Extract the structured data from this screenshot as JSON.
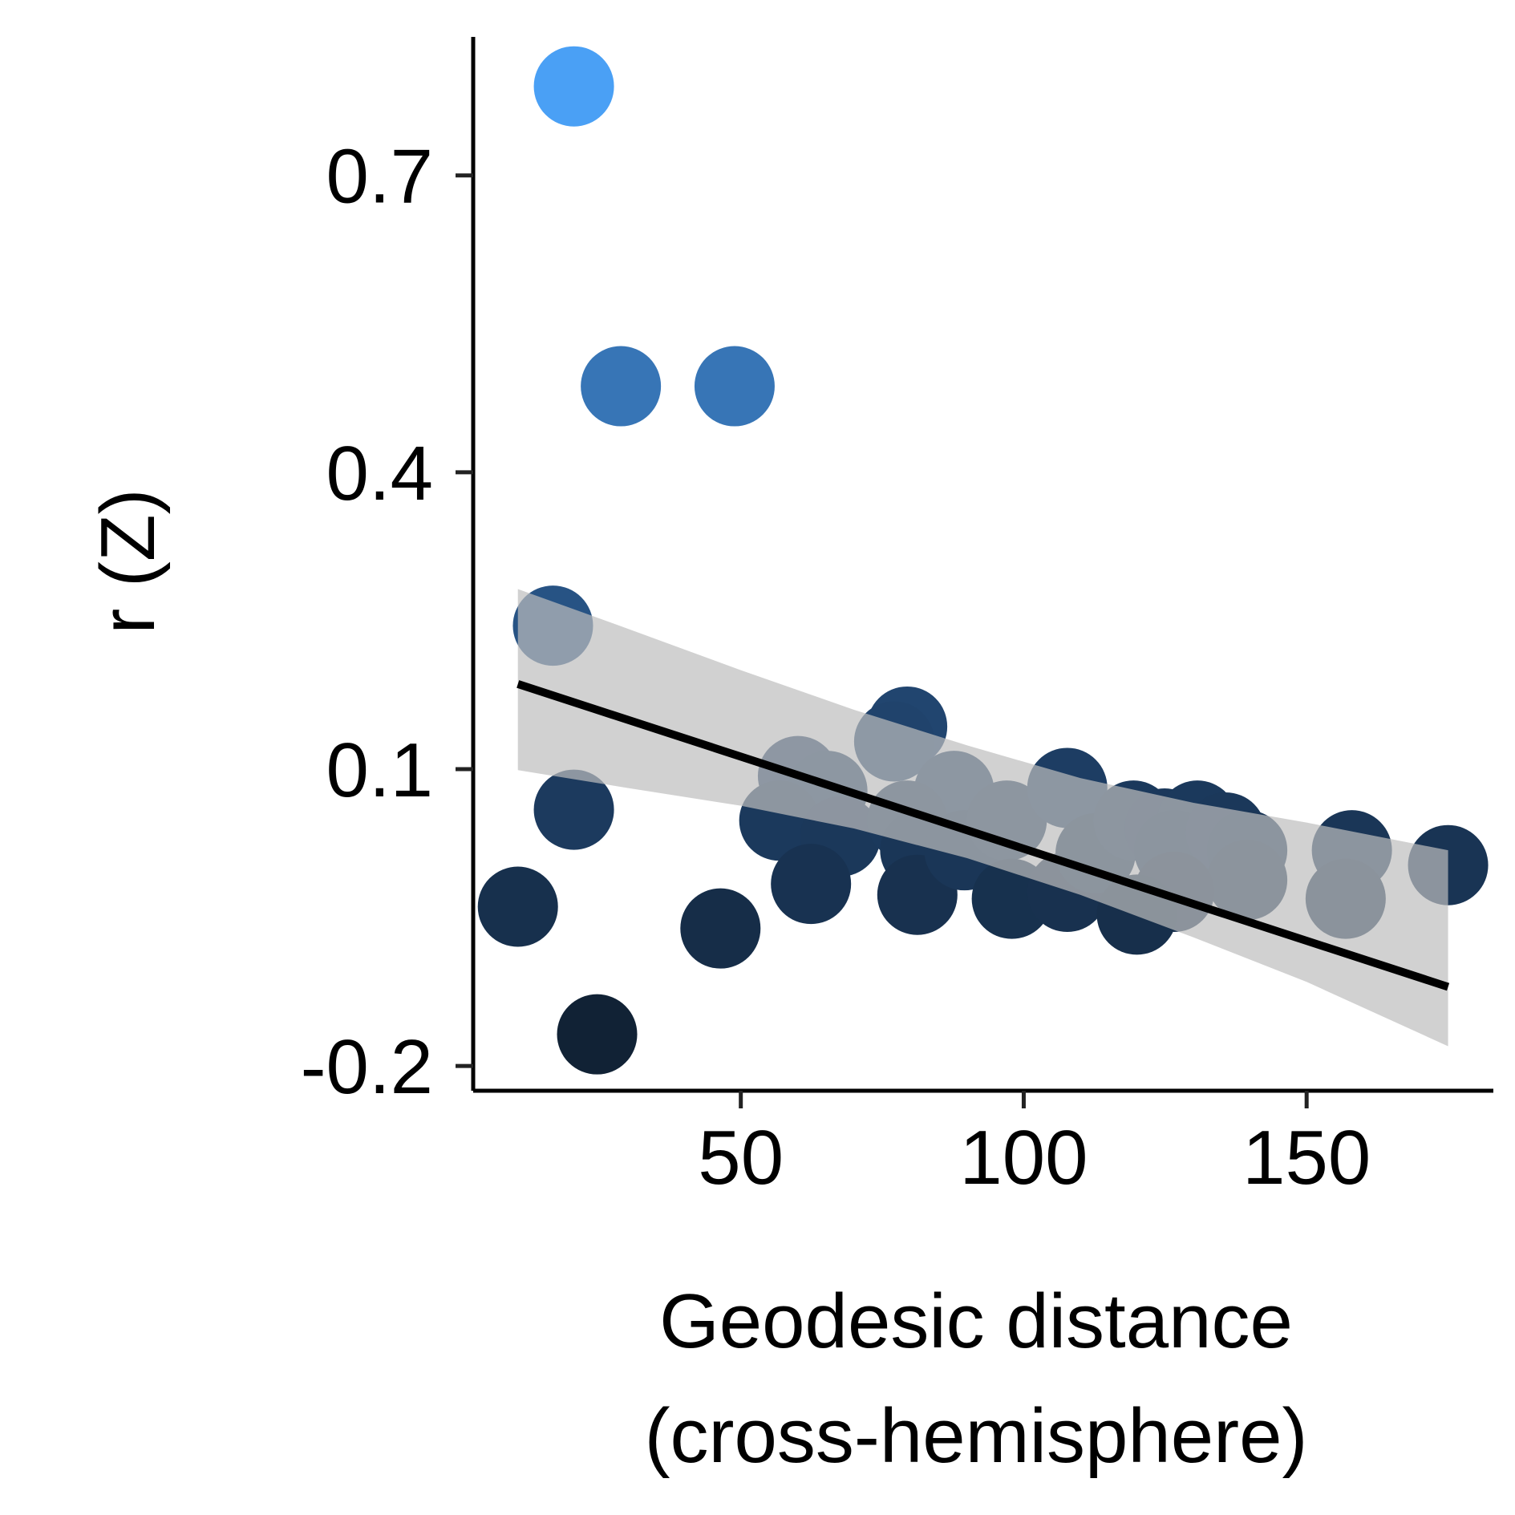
{
  "chart_data": {
    "type": "scatter",
    "title": "",
    "xlabel_lines": [
      "Geodesic distance",
      "(cross-hemisphere)"
    ],
    "ylabel": "r (Z)",
    "xlim": [
      2.7,
      183
    ],
    "ylim": [
      -0.225,
      0.84
    ],
    "x_ticks": [
      {
        "value": 50,
        "label": "50"
      },
      {
        "value": 100,
        "label": "100"
      },
      {
        "value": 150,
        "label": "150"
      }
    ],
    "y_ticks": [
      {
        "value": -0.2,
        "label": "-0.2"
      },
      {
        "value": 0.1,
        "label": "0.1"
      },
      {
        "value": 0.4,
        "label": "0.4"
      },
      {
        "value": 0.7,
        "label": "0.7"
      }
    ],
    "grid": false,
    "color_scale": {
      "low": "#0f1e2f",
      "mid": "#1e3f66",
      "high": "#4aa0f5"
    },
    "points": [
      {
        "x": 20.5,
        "y": 0.79
      },
      {
        "x": 28.8,
        "y": 0.487
      },
      {
        "x": 48.9,
        "y": 0.487
      },
      {
        "x": 16.8,
        "y": 0.245
      },
      {
        "x": 20.5,
        "y": 0.059
      },
      {
        "x": 10.6,
        "y": -0.039
      },
      {
        "x": 24.6,
        "y": -0.168
      },
      {
        "x": 46.4,
        "y": -0.061
      },
      {
        "x": 60.1,
        "y": 0.093
      },
      {
        "x": 65.3,
        "y": 0.078
      },
      {
        "x": 56.8,
        "y": 0.048
      },
      {
        "x": 67.6,
        "y": 0.032
      },
      {
        "x": 62.4,
        "y": -0.016
      },
      {
        "x": 79.4,
        "y": 0.143
      },
      {
        "x": 77.1,
        "y": 0.128
      },
      {
        "x": 87.7,
        "y": 0.078
      },
      {
        "x": 79.4,
        "y": 0.048
      },
      {
        "x": 81.7,
        "y": 0.018
      },
      {
        "x": 81.2,
        "y": -0.027
      },
      {
        "x": 89.5,
        "y": 0.018
      },
      {
        "x": 97.0,
        "y": 0.048
      },
      {
        "x": 107.7,
        "y": 0.081
      },
      {
        "x": 97.9,
        "y": -0.031
      },
      {
        "x": 107.7,
        "y": -0.024
      },
      {
        "x": 112.7,
        "y": 0.015
      },
      {
        "x": 119.4,
        "y": 0.048
      },
      {
        "x": 124.9,
        "y": 0.04
      },
      {
        "x": 130.7,
        "y": 0.048
      },
      {
        "x": 126.6,
        "y": 0.018
      },
      {
        "x": 135.7,
        "y": 0.036
      },
      {
        "x": 139.5,
        "y": 0.018
      },
      {
        "x": 139.5,
        "y": -0.012
      },
      {
        "x": 126.6,
        "y": -0.024
      },
      {
        "x": 120.0,
        "y": -0.047
      },
      {
        "x": 158.0,
        "y": 0.018
      },
      {
        "x": 156.9,
        "y": -0.031
      },
      {
        "x": 175.0,
        "y": 0.003
      }
    ],
    "fit_line": {
      "x": [
        10.6,
        175.0
      ],
      "y": [
        0.186,
        -0.12
      ]
    },
    "confidence_band": {
      "x": [
        10.6,
        30,
        50,
        70,
        90,
        110,
        130,
        150,
        175.0
      ],
      "upper": [
        0.282,
        0.242,
        0.2,
        0.16,
        0.124,
        0.091,
        0.066,
        0.046,
        0.018
      ],
      "lower": [
        0.099,
        0.081,
        0.063,
        0.04,
        0.01,
        -0.027,
        -0.07,
        -0.115,
        -0.18
      ]
    },
    "style": {
      "axis_color": "#000000",
      "fit_color": "#000000",
      "band_color": "#bdbdbd"
    }
  }
}
